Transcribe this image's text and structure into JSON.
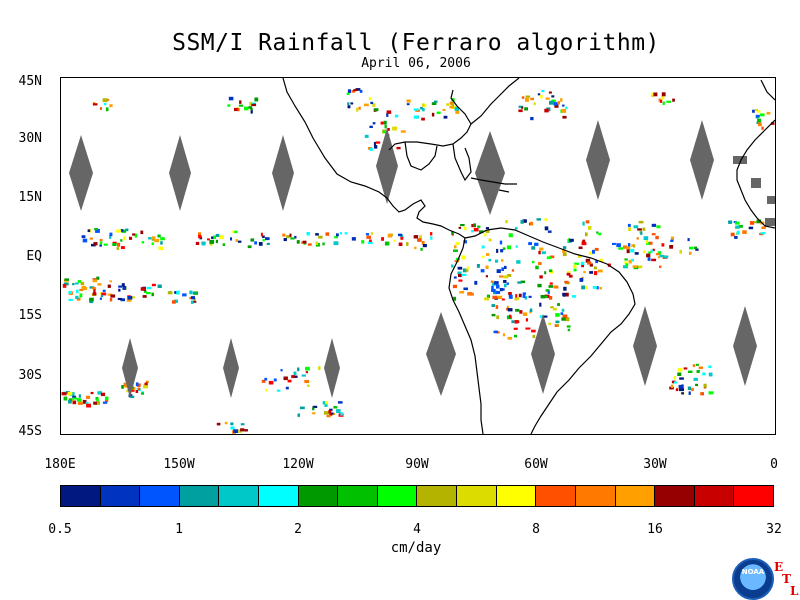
{
  "title": "SSM/I Rainfall (Ferraro algorithm)",
  "date": "April 06, 2006",
  "map": {
    "lon_range": [
      -180,
      0
    ],
    "lat_range": [
      -45,
      45
    ],
    "y_labels": [
      "45N",
      "30N",
      "15N",
      "EQ",
      "15S",
      "30S",
      "45S"
    ],
    "x_labels": [
      "180E",
      "150W",
      "120W",
      "90W",
      "60W",
      "30W",
      "0"
    ],
    "data_gap_color": "#666666",
    "land_outline_color": "#000000"
  },
  "colorbar": {
    "colors": [
      "#001880",
      "#0033c0",
      "#0055ff",
      "#00a0a0",
      "#00c8c8",
      "#00ffff",
      "#009900",
      "#00c000",
      "#00ff00",
      "#b4b400",
      "#dcdc00",
      "#ffff00",
      "#ff5000",
      "#ff7800",
      "#ffa000",
      "#960000",
      "#c80000",
      "#ff0000"
    ],
    "labels": [
      "0.5",
      "1",
      "2",
      "4",
      "8",
      "16",
      "32"
    ],
    "units": "cm/day"
  },
  "logo": {
    "text": "NOAA",
    "etl": [
      "E",
      "T",
      "L"
    ]
  }
}
